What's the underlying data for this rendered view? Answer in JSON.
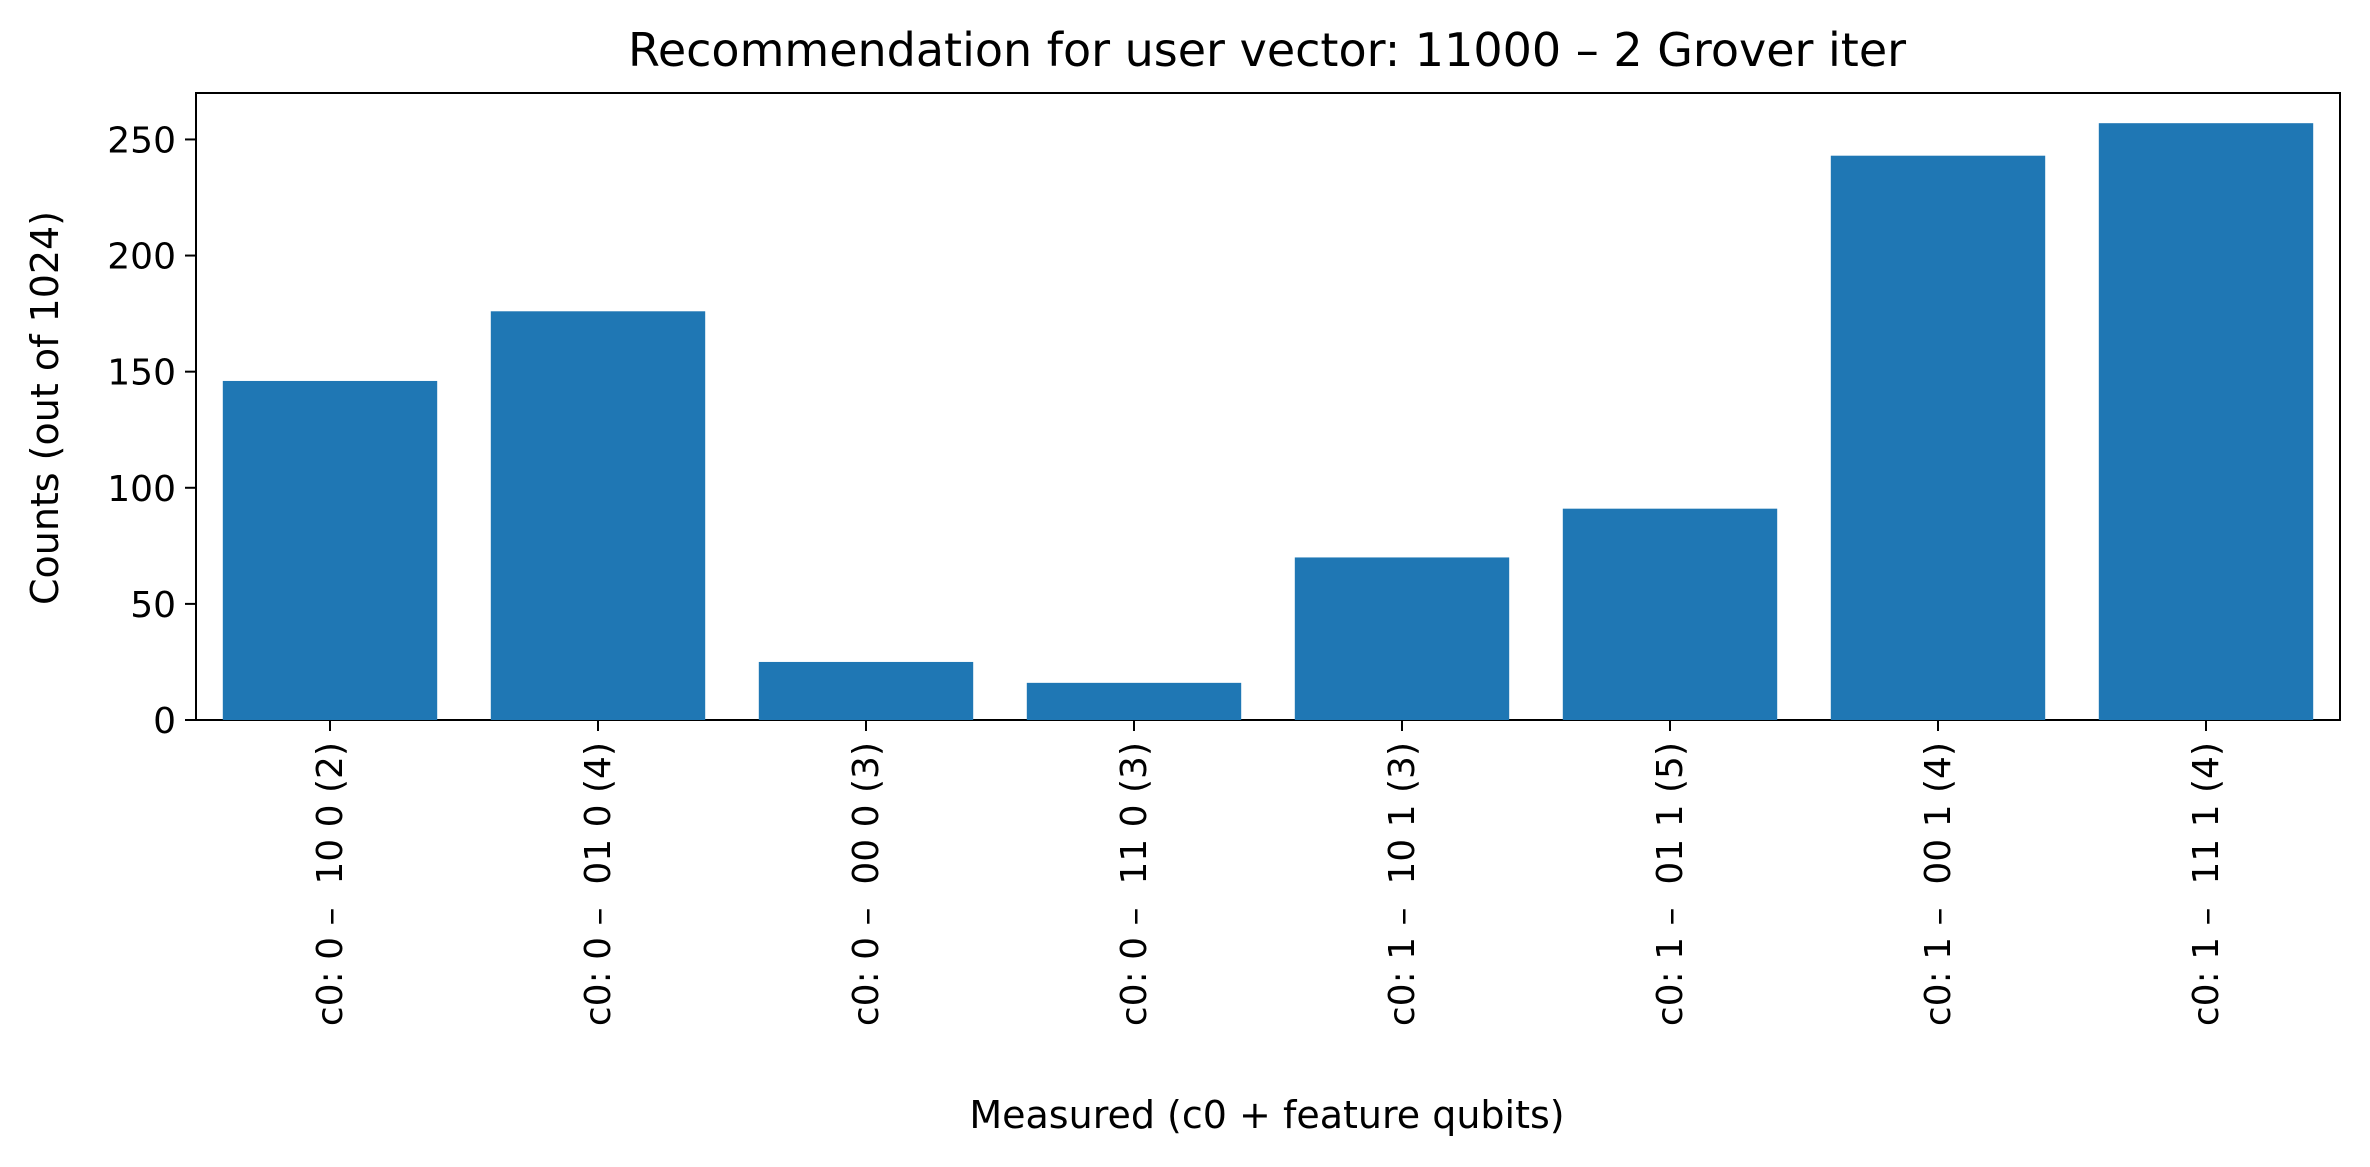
{
  "chart_data": {
    "type": "bar",
    "title": "Recommendation for user vector: 11000 – 2 Grover iter",
    "xlabel": "Measured (c0 + feature qubits)",
    "ylabel": "Counts (out of 1024)",
    "categories": [
      "c0: 0 –  10 0 (2)",
      "c0: 0 –  01 0 (4)",
      "c0: 0 –  00 0 (3)",
      "c0: 0 –  11 0 (3)",
      "c0: 1 –  10 1 (3)",
      "c0: 1 –  01 1 (5)",
      "c0: 1 –  00 1 (4)",
      "c0: 1 –  11 1 (4)"
    ],
    "values": [
      146,
      176,
      25,
      16,
      70,
      91,
      243,
      257
    ],
    "ylim": [
      0,
      270
    ],
    "yticks": [
      0,
      50,
      100,
      150,
      200,
      250
    ],
    "bar_color": "#1f77b4",
    "grid": false,
    "legend": "none"
  }
}
